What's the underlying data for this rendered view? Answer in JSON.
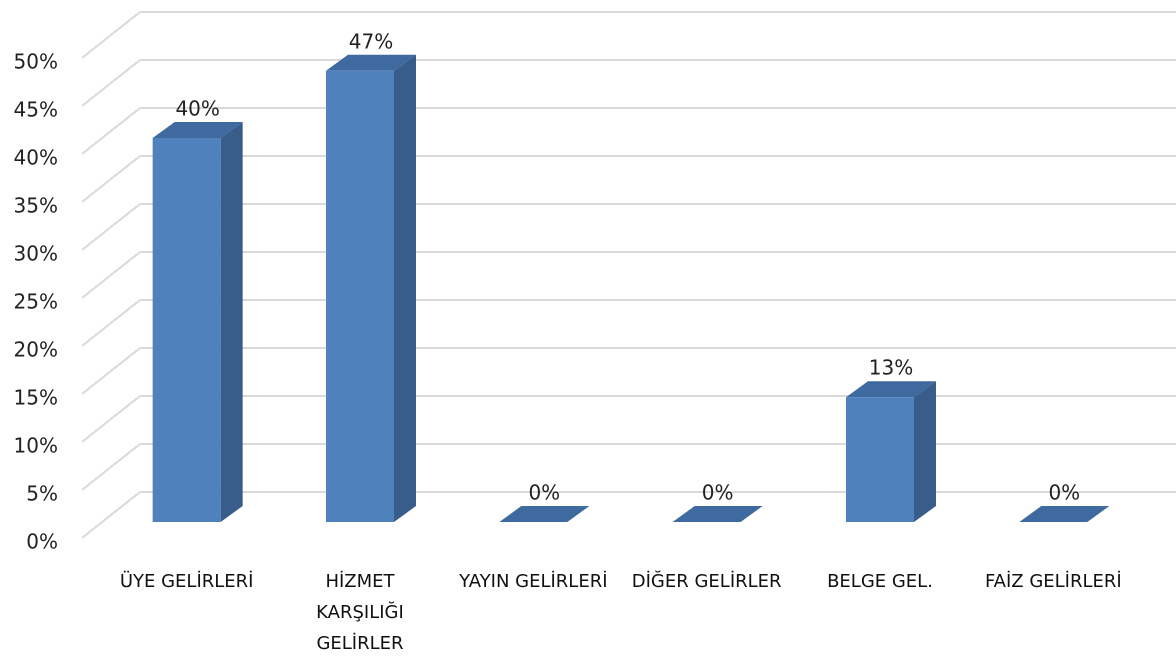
{
  "chart_data": {
    "type": "bar3d",
    "categories": [
      "ÜYE GELİRLERİ",
      "HİZMET KARŞILIĞI GELİRLER",
      "YAYIN GELİRLERİ",
      "DİĞER GELİRLER",
      "BELGE GEL.",
      "FAİZ GELİRLERİ"
    ],
    "values": [
      40,
      47,
      0,
      0,
      13,
      0
    ],
    "value_labels": [
      "40%",
      "47%",
      "0%",
      "0%",
      "13%",
      "0%"
    ],
    "color": "#4f81bd",
    "ylim": [
      0,
      50
    ],
    "yticks": [
      {
        "value": 0,
        "label": "0%"
      },
      {
        "value": 5,
        "label": "5%"
      },
      {
        "value": 10,
        "label": "10%"
      },
      {
        "value": 15,
        "label": "15%"
      },
      {
        "value": 20,
        "label": "20%"
      },
      {
        "value": 25,
        "label": "25%"
      },
      {
        "value": 30,
        "label": "30%"
      },
      {
        "value": 35,
        "label": "35%"
      },
      {
        "value": 40,
        "label": "40%"
      },
      {
        "value": 45,
        "label": "45%"
      },
      {
        "value": 50,
        "label": "50%"
      }
    ],
    "grid": true
  }
}
